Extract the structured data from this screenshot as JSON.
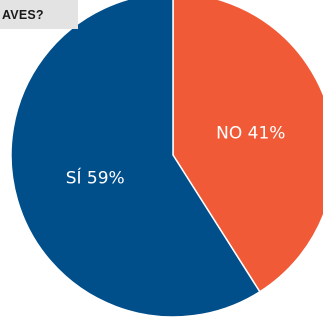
{
  "chart_data": {
    "type": "pie",
    "title": "AVES?",
    "slices": [
      {
        "label": "NO",
        "value": 41,
        "display": "NO 41%",
        "color": "#f15a37"
      },
      {
        "label": "SÍ",
        "value": 59,
        "display": "SÍ 59%",
        "color": "#004f8b"
      }
    ]
  }
}
